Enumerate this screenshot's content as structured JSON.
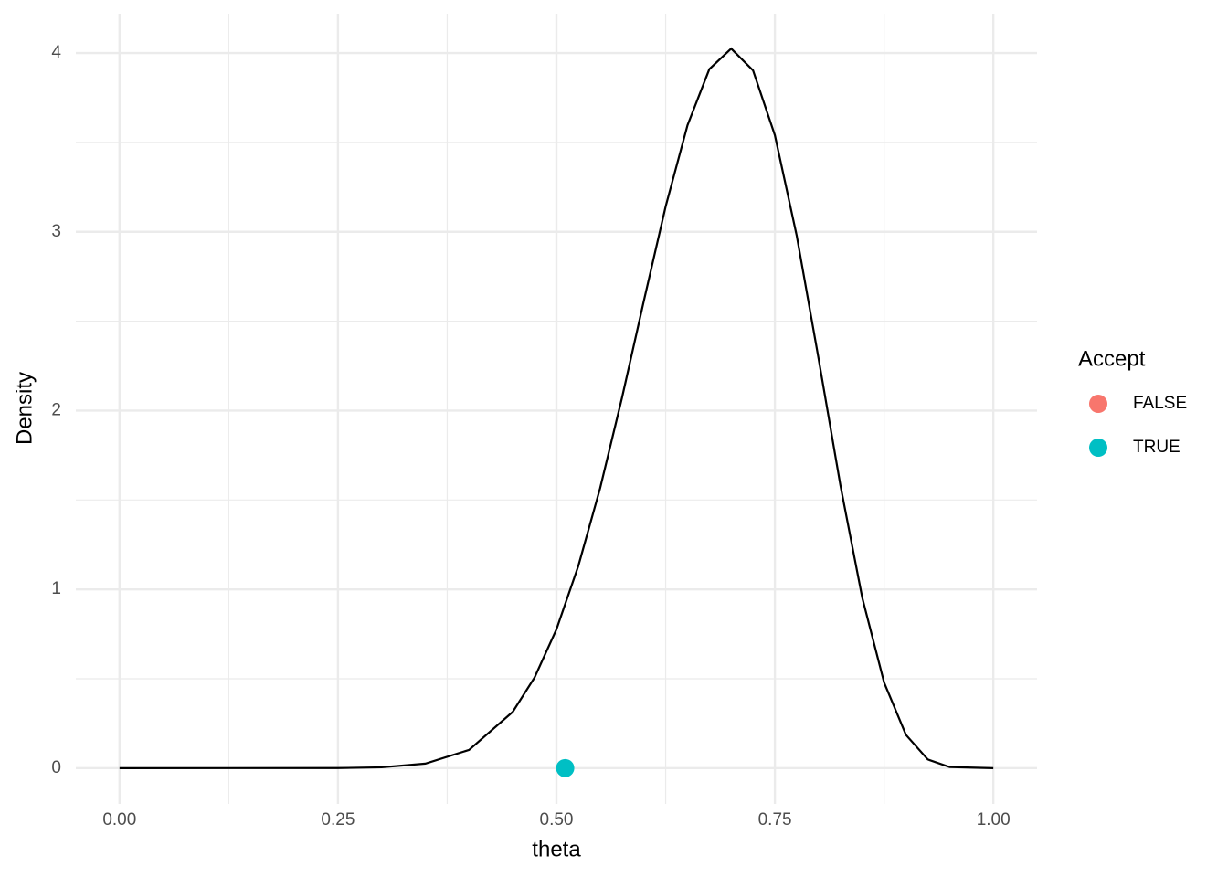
{
  "chart_data": {
    "type": "line",
    "x_label": "theta",
    "y_label": "Density",
    "xlim": [
      -0.05,
      1.05
    ],
    "ylim": [
      -0.2,
      4.22
    ],
    "xticks": [
      {
        "value": 0,
        "label": "0.00"
      },
      {
        "value": 0.25,
        "label": "0.25"
      },
      {
        "value": 0.5,
        "label": "0.50"
      },
      {
        "value": 0.75,
        "label": "0.75"
      },
      {
        "value": 1,
        "label": "1.00"
      }
    ],
    "yticks": [
      0,
      1,
      2,
      3,
      4
    ],
    "grid": true,
    "line": {
      "color": "#000000",
      "x": [
        0,
        0.25,
        0.3,
        0.35,
        0.4,
        0.45,
        0.475,
        0.5,
        0.525,
        0.55,
        0.575,
        0.6,
        0.625,
        0.65,
        0.675,
        0.7,
        0.725,
        0.75,
        0.775,
        0.8,
        0.825,
        0.85,
        0.875,
        0.9,
        0.925,
        0.95,
        1
      ],
      "values": [
        0,
        0.0005,
        0.0046,
        0.0254,
        0.102,
        0.315,
        0.507,
        0.776,
        1.13,
        1.566,
        2.071,
        2.613,
        3.142,
        3.596,
        3.91,
        4.025,
        3.903,
        3.54,
        2.978,
        2.291,
        1.582,
        0.953,
        0.479,
        0.186,
        0.0486,
        0.0062,
        0
      ]
    },
    "points": {
      "color": "#00BFC4",
      "x": [
        0.51
      ],
      "values": [
        0
      ]
    },
    "legend": {
      "title": "Accept",
      "position": "right",
      "items": [
        {
          "name": "FALSE",
          "color": "#F8766D"
        },
        {
          "name": "TRUE",
          "color": "#00BFC4"
        }
      ]
    }
  }
}
